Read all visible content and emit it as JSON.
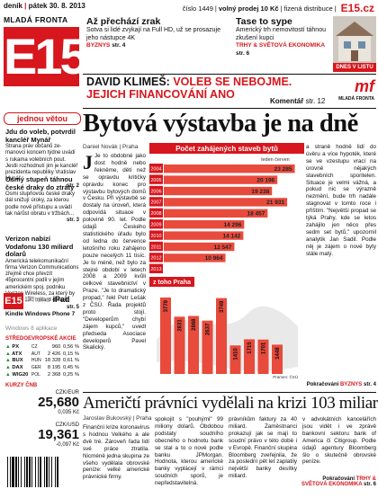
{
  "masthead": {
    "edition_line": [
      "deník",
      "pátek 30. 8. 2013"
    ],
    "brand_name": "MLADÁ FRONTA",
    "logo": "E15",
    "issue": "číslo 1449",
    "price_label": "volný prodej 10 Kč",
    "distribution": "fizená distribuce",
    "web": "E15.cz"
  },
  "teasers": [
    {
      "title": "Až přechází zrak",
      "text": "Sotva si lidé zvykají na Full HD, už se prosazuje jeho nástupce 4K",
      "pub": "BYZNYS",
      "page": "str. 4"
    },
    {
      "title": "Tase to sype",
      "text": "Americký trh nemovitostí táhnou zkušení kupci",
      "pub": "TRHY & SVĚTOVÁ EKONOMIKA",
      "page": "str. 6"
    }
  ],
  "dnes_v_listu": "DNES V LISTU",
  "opinion": {
    "name": "DAVID KLIMEŠ:",
    "headline": "VOLEB SE NEBOJME. JEJICH FINANCOVÁNÍ ANO",
    "komentar": "Komentář",
    "page": "str. 12",
    "mf_logo": "mf",
    "mf_sub": "MLADÁ FRONTA"
  },
  "left_column": {
    "section": "jednou větou",
    "items": [
      {
        "title": "Jdu do voleb, potvrdil kancléř Mynář",
        "text": "Strana práv občanů ze-manovci koncem týdne uvádí s rukama volebních pout. Jestli rozhodnutí jim je kancléř prezidenta republiky Vratislav Mynář.",
        "page": "str. 2"
      },
      {
        "title": "Osmý stupeň táhnou české draky do ztráty",
        "text": "Osmi stupňovou české draky dál snižují úroky, za kterou podle nově přístupu a uvádí tak nárůst obratu v tržbách...",
        "page": "str. 3"
      },
      {
        "title": "Verizon nabízí Vodafonu 130 miliard dolarů",
        "text": "Americká telekomunikační firma Verizon Communications zřejmě chce převzít 45procentní podíl v jejím americkém spoj. podniku Verizon Wireless, za který by nabídla 130 miliard dolarů.",
        "page": "str. 5"
      }
    ]
  },
  "ipad": {
    "logo": "E15",
    "line1a": "iPhone",
    "line1b": "iPad",
    "line2": "Kindle Windows Phone 7",
    "line3": "Windows 8 aplikace"
  },
  "market": {
    "title": "STŘEDOEVROPSKÉ AKCIE",
    "rows": [
      {
        "name": "PX",
        "region": "CZ",
        "value": "960",
        "change": "0,56 %",
        "dir": "up"
      },
      {
        "name": "ATX",
        "region": "AUT",
        "value": "2 426",
        "change": "0,15 %",
        "dir": "up"
      },
      {
        "name": "BUX",
        "region": "HUN",
        "value": "18 328",
        "change": "0,61 %",
        "dir": "up"
      },
      {
        "name": "DAX",
        "region": "GER",
        "value": "8 195",
        "change": "0,45 %",
        "dir": "up"
      },
      {
        "name": "WIG20",
        "region": "POL",
        "value": "2 368",
        "change": "0,25 %",
        "dir": "up"
      }
    ]
  },
  "fx": {
    "title": "KURZY ČNB",
    "rows": [
      {
        "pair": "CZK/EUR",
        "value": "25,680",
        "change": "0,035 Kč"
      },
      {
        "pair": "CZK/USD",
        "value": "19,361",
        "change": "-0,097 Kč"
      }
    ]
  },
  "main_story": {
    "headline": "Bytová výstavba je na dně",
    "author": "Daniel Novák | Praha",
    "col1": "Je to obdobné jako dost hodně nebo řekněme, dětí než se opravdu kritičky opravdu konec pro výstavbu bytových domů v Česku. Při výstavbě se dostaly na úroveň, která odpovídá situace v polovině 90. let. Podle údajů Českého statistického úřadu bylo od ledna do července letošního roku zahájeno pouze necelých 11 tisíc. Je to méně, než bylo za stejné období v letech 2008 a 2009 kvůli celkové stavebnictví v Praze. \"Je to dramatický propad,\" řekl Petr Lešák z ČSÚ. Řada projektů proto stojí. \"Developerům chybí zájem kupců,\" uvedl předseda Asociace developerů Pavel Skalický.",
    "col3": "a straně hodně lidí do úvěru a více hypoték, které se ve vzestupu vrací na úrovně nějakých stavebních sporitelen. Situace je velmi vážná, a pokud nic se výrazně nezmění, bude trh nadále stagnovat v tomto roce i příštím. \"Největší propad se týká Prahy, kde se letos zahájilo jen něco přes sedm set bytů,\" upozornil analytik Jan Sadil. Podle něj je zájem o nové byty stále malý.",
    "continue": "Pokračování",
    "continue_pub": "BYZNYS",
    "continue_page": "str. 4"
  },
  "bottom_story": {
    "headline": "Američtí právníci vydělali na krizi 103 miliard",
    "author": "Jaroslav Bukovský | Praha",
    "col1": "Finanční krize koronavirus s hodnou Velkého a ale dvě tré. Zároveň řada lidí své práce ztratila. Nicméně jedna skupina ze všeho vydělala obrovské peníze: velké americké právnické firmy.",
    "col2": "spokojit s \"pouhými\" 99 miliony dolarů. Obdobou podstaty soudního obecného o hodnotu bank se stal a to o nové podle banku JPMorgan. Hodnota, kterou americké banky vyplácejí v rámci soudních sporů, je nepředstavitelná.",
    "col3": "právníkům faktury za 40 miliard. Zaměstnanci prokazují jak se mají to soudní právo v této době i v Evropě. Finanční skupina Bloomberg zveřejnila, že za poslední pět let zaplatily největší banky desítky miliard.",
    "col4": "v advokátních kancelářích jsou vidět i ve zprávě bankovní sektoru bank of America či Citigroup. Podle údajů agentury Bloomberg šlo o skutečně obrovské peníze.",
    "continue": "Pokračování",
    "continue_pub": "TRHY & SVĚTOVÁ EKONOMIKA",
    "continue_page": "str. 6"
  },
  "chart_data": {
    "type": "bar",
    "title": "Počet zahájených staveb bytů",
    "subtitle": "leden červen",
    "series": [
      {
        "name": "",
        "categories": [
          "2004",
          "2005",
          "2006",
          "2007",
          "2008",
          "2009",
          "2010",
          "2011",
          "2012",
          "2013"
        ],
        "values": [
          23285,
          20196,
          19238,
          21931,
          18457,
          14296,
          14142,
          12547,
          10964,
          null
        ]
      },
      {
        "name": "z toho Praha",
        "categories": [
          "2004",
          "2005",
          "2006",
          "2007",
          "2008",
          "2009",
          "2010",
          "2011",
          "2012",
          "2013"
        ],
        "values": [
          3779,
          2831,
          2868,
          2637,
          3749,
          1410,
          1715,
          1701,
          1448,
          null
        ]
      }
    ],
    "source": "Pramen: ČSÚ"
  }
}
